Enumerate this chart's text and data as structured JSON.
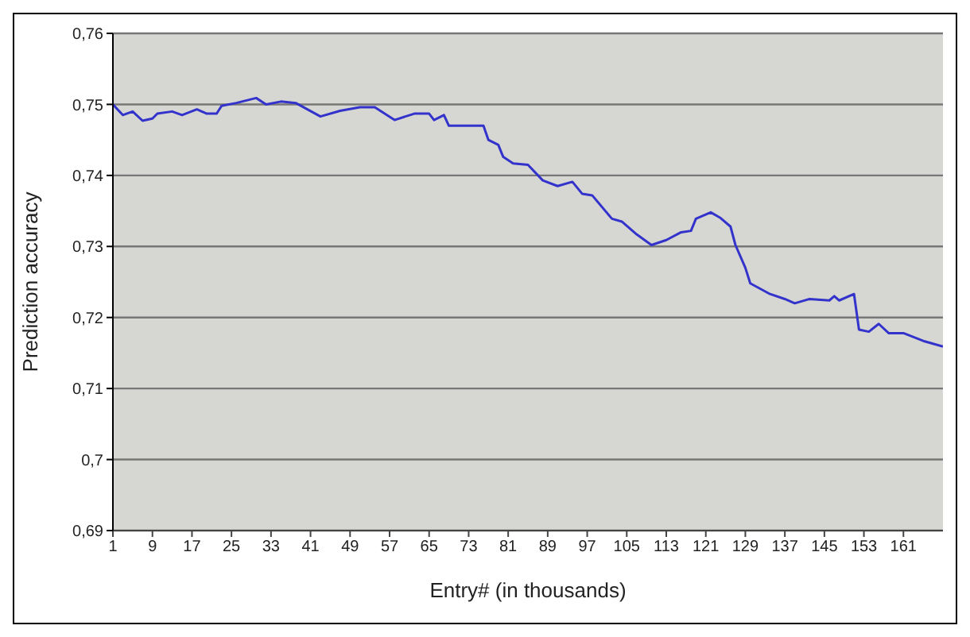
{
  "chart_data": {
    "type": "line",
    "xlabel": "Entry# (in thousands)",
    "ylabel": "Prediction accuracy",
    "x": [
      1,
      3,
      5,
      7,
      9,
      10,
      13,
      15,
      18,
      20,
      22,
      23,
      26,
      30,
      32,
      35,
      38,
      43,
      47,
      51,
      54,
      58,
      62,
      65,
      66,
      68,
      69,
      76,
      77,
      79,
      80,
      82,
      85,
      88,
      91,
      94,
      96,
      98,
      102,
      104,
      107,
      110,
      113,
      116,
      118,
      119,
      122,
      124,
      126,
      127,
      129,
      130,
      134,
      137,
      139,
      142,
      146,
      147,
      148,
      151,
      152,
      154,
      156,
      158,
      161,
      165,
      167,
      169
    ],
    "series": [
      {
        "color": "#3333cc",
        "values": [
          0.75,
          0.7485,
          0.749,
          0.7477,
          0.748,
          0.7487,
          0.749,
          0.7485,
          0.7493,
          0.7487,
          0.7487,
          0.7498,
          0.7502,
          0.7509,
          0.75,
          0.7504,
          0.7502,
          0.7483,
          0.7491,
          0.7496,
          0.7496,
          0.7478,
          0.7487,
          0.7487,
          0.7478,
          0.7485,
          0.747,
          0.747,
          0.745,
          0.7443,
          0.7426,
          0.7417,
          0.7415,
          0.7393,
          0.7385,
          0.7391,
          0.7374,
          0.7372,
          0.7339,
          0.7335,
          0.7317,
          0.7302,
          0.7309,
          0.732,
          0.7322,
          0.7339,
          0.7348,
          0.734,
          0.7328,
          0.7302,
          0.727,
          0.7248,
          0.7233,
          0.7226,
          0.722,
          0.7226,
          0.7224,
          0.723,
          0.7224,
          0.7233,
          0.7183,
          0.718,
          0.7191,
          0.7178,
          0.7178,
          0.7167,
          0.7163,
          0.7159
        ]
      }
    ],
    "xlim": [
      1,
      169
    ],
    "xticks": [
      1,
      9,
      17,
      25,
      33,
      41,
      49,
      57,
      65,
      73,
      81,
      89,
      97,
      105,
      113,
      121,
      129,
      137,
      145,
      153,
      161
    ],
    "ylim": [
      0.69,
      0.76
    ],
    "yticks": [
      {
        "value": 0.69,
        "label": "0,69"
      },
      {
        "value": 0.7,
        "label": "0,7"
      },
      {
        "value": 0.71,
        "label": "0,71"
      },
      {
        "value": 0.72,
        "label": "0,72"
      },
      {
        "value": 0.73,
        "label": "0,73"
      },
      {
        "value": 0.74,
        "label": "0,74"
      },
      {
        "value": 0.75,
        "label": "0,75"
      },
      {
        "value": 0.76,
        "label": "0,76"
      }
    ],
    "grid": "y",
    "legend": false,
    "marker": "none",
    "line_style": "solid"
  }
}
